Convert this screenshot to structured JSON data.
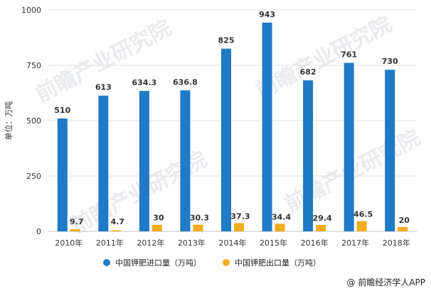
{
  "chart_data": {
    "type": "bar",
    "categories": [
      "2010年",
      "2011年",
      "2012年",
      "2013年",
      "2014年",
      "2015年",
      "2016年",
      "2017年",
      "2018年"
    ],
    "series": [
      {
        "name": "中国钾肥进口量（万吨）",
        "color": "#1f7ac7",
        "values": [
          510,
          613,
          634.3,
          636.8,
          825,
          943,
          682,
          761,
          730
        ],
        "labels": [
          "510",
          "613",
          "634.3",
          "636.8",
          "825",
          "943",
          "682",
          "761",
          "730"
        ]
      },
      {
        "name": "中国钾肥出口量（万吨）",
        "color": "#f0ad1f",
        "values": [
          9.7,
          4.7,
          30,
          30.3,
          37.3,
          34.4,
          29.4,
          46.5,
          20
        ],
        "labels": [
          "9.7",
          "4.7",
          "30",
          "30.3",
          "37.3",
          "34.4",
          "29.4",
          "46.5",
          "20"
        ]
      }
    ],
    "ylabel": "单位：万吨",
    "ylim": [
      0,
      1000
    ],
    "yticks": [
      0,
      250,
      500,
      750,
      1000
    ],
    "grid": true,
    "legend_position": "bottom"
  },
  "source": "@ 前瞻经济学人APP",
  "watermark": "前瞻产业研究院"
}
